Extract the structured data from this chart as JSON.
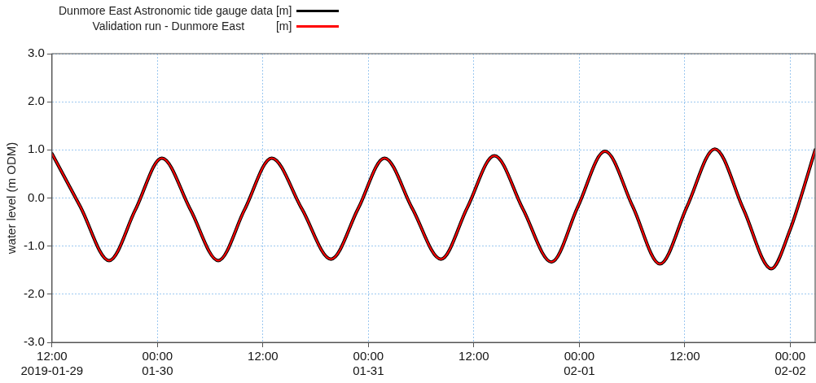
{
  "chart_data": {
    "type": "line",
    "ylabel": "water level (m ODM)",
    "legend": "top left",
    "grid": true,
    "marker": "none",
    "line_style": "solid",
    "x": [
      "2019-01-29T12:00",
      "2019-01-29T15:15",
      "2019-01-29T18:30",
      "2019-01-29T21:30",
      "2019-01-30T00:30",
      "2019-01-30T03:45",
      "2019-01-30T06:55",
      "2019-01-30T09:55",
      "2019-01-30T13:00",
      "2019-01-30T16:25",
      "2019-01-30T19:45",
      "2019-01-30T22:50",
      "2019-01-31T01:50",
      "2019-01-31T05:00",
      "2019-01-31T08:15",
      "2019-01-31T11:15",
      "2019-01-31T14:20",
      "2019-01-31T17:35",
      "2019-01-31T20:50",
      "2019-01-31T23:50",
      "2019-02-01T02:55",
      "2019-02-01T06:05",
      "2019-02-01T09:10",
      "2019-02-01T12:15",
      "2019-02-01T15:25",
      "2019-02-01T18:40",
      "2019-02-01T21:50",
      "2019-02-02T00:00",
      "2019-02-02T00:50",
      "2019-02-02T02:50"
    ],
    "series": [
      {
        "name": "Dunmore East Astronomic tide gauge data [m]",
        "color": "#000000",
        "values": [
          0.92,
          -0.19,
          -1.3,
          -0.24,
          0.83,
          -0.24,
          -1.3,
          -0.24,
          0.83,
          -0.22,
          -1.27,
          -0.22,
          0.83,
          -0.22,
          -1.27,
          -0.2,
          0.88,
          -0.23,
          -1.33,
          -0.18,
          0.97,
          -0.18,
          -1.37,
          -0.18,
          1.02,
          -0.23,
          -1.47,
          -0.65,
          -0.2,
          1.0
        ]
      },
      {
        "name": "Validation run - Dunmore East          [m]",
        "color": "#ff0000",
        "values": [
          0.92,
          -0.19,
          -1.3,
          -0.24,
          0.83,
          -0.24,
          -1.3,
          -0.24,
          0.83,
          -0.22,
          -1.27,
          -0.22,
          0.83,
          -0.22,
          -1.27,
          -0.2,
          0.88,
          -0.23,
          -1.33,
          -0.18,
          0.97,
          -0.18,
          -1.37,
          -0.18,
          1.02,
          -0.23,
          -1.47,
          -0.65,
          -0.2,
          1.0
        ]
      }
    ],
    "xlim": [
      "2019-01-29T12:00",
      "2019-02-02T02:50"
    ],
    "xticks": [
      {
        "value": "2019-01-29T12:00",
        "label": "12:00\n2019-01-29"
      },
      {
        "value": "2019-01-30T00:00",
        "label": "00:00\n01-30"
      },
      {
        "value": "2019-01-30T12:00",
        "label": "12:00"
      },
      {
        "value": "2019-01-31T00:00",
        "label": "00:00\n01-31"
      },
      {
        "value": "2019-01-31T12:00",
        "label": "12:00"
      },
      {
        "value": "2019-02-01T00:00",
        "label": "00:00\n02-01"
      },
      {
        "value": "2019-02-01T12:00",
        "label": "12:00"
      },
      {
        "value": "2019-02-02T00:00",
        "label": "00:00\n02-02"
      }
    ],
    "ylim": [
      -3,
      3
    ],
    "yticks": [
      {
        "value": -3,
        "label": "-3.0"
      },
      {
        "value": -2,
        "label": "-2.0"
      },
      {
        "value": -1,
        "label": "-1.0"
      },
      {
        "value": 0,
        "label": "0.0"
      },
      {
        "value": 1,
        "label": "1.0"
      },
      {
        "value": 2,
        "label": "2.0"
      },
      {
        "value": 3,
        "label": "3.0"
      }
    ]
  }
}
